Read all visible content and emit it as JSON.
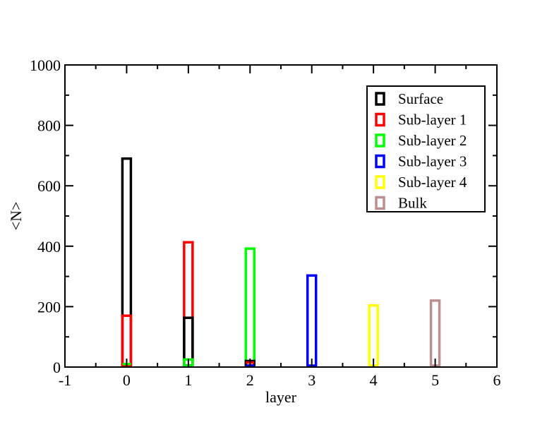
{
  "chart_data": {
    "type": "bar",
    "xlabel": "layer",
    "ylabel": "<N>",
    "xlim": [
      -1,
      6
    ],
    "ylim": [
      0,
      1000
    ],
    "xticks": [
      "-1",
      "0",
      "1",
      "2",
      "3",
      "4",
      "5",
      "6"
    ],
    "yticks": [
      "0",
      "200",
      "400",
      "600",
      "800",
      "1000"
    ],
    "grid": false,
    "legend_position": "top-right",
    "series": [
      {
        "name": "Surface",
        "color": "#000000",
        "x": [
          0,
          1,
          2,
          3,
          4,
          5
        ],
        "values": [
          690,
          163,
          20,
          0,
          0,
          0
        ]
      },
      {
        "name": "Sub-layer 1",
        "color": "#ff0000",
        "x": [
          0,
          1,
          2,
          3,
          4,
          5
        ],
        "values": [
          170,
          413,
          15,
          0,
          0,
          0
        ]
      },
      {
        "name": "Sub-layer 2",
        "color": "#00ff00",
        "x": [
          0,
          1,
          2,
          3,
          4,
          5
        ],
        "values": [
          10,
          25,
          392,
          0,
          0,
          0
        ]
      },
      {
        "name": "Sub-layer 3",
        "color": "#0000ff",
        "x": [
          0,
          1,
          2,
          3,
          4,
          5
        ],
        "values": [
          0,
          0,
          5,
          303,
          0,
          0
        ]
      },
      {
        "name": "Sub-layer 4",
        "color": "#ffff00",
        "x": [
          0,
          1,
          2,
          3,
          4,
          5
        ],
        "values": [
          0,
          0,
          0,
          0,
          204,
          0
        ]
      },
      {
        "name": "Bulk",
        "color": "#bc8f8f",
        "x": [
          0,
          1,
          2,
          3,
          4,
          5
        ],
        "values": [
          0,
          0,
          0,
          0,
          0,
          220
        ]
      }
    ]
  }
}
